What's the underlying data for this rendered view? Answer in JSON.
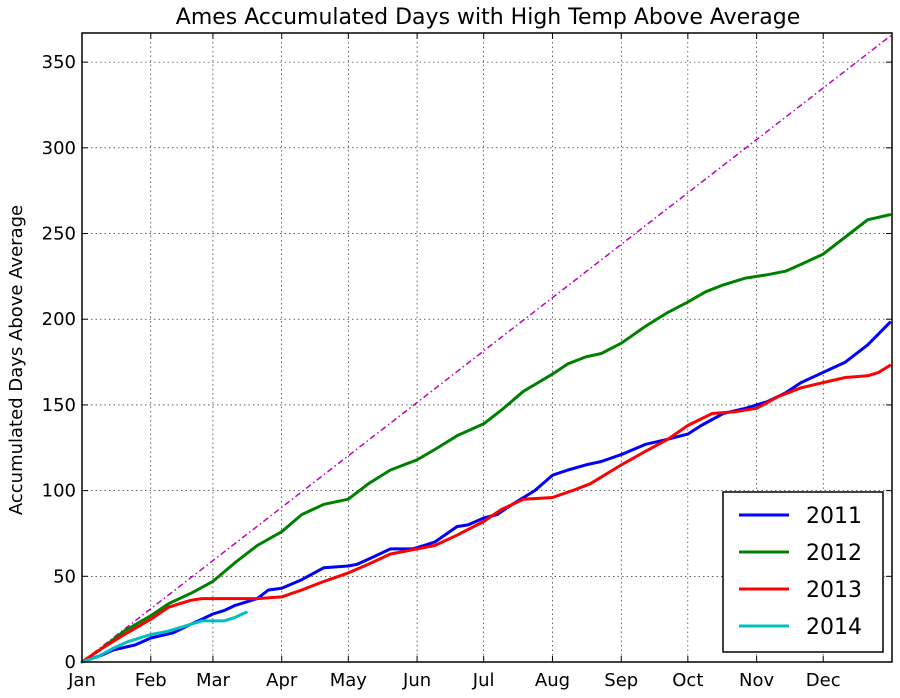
{
  "chart_data": {
    "type": "line",
    "title": "Ames Accumulated Days with High Temp Above Average",
    "xlabel": "",
    "ylabel": "Accumulated Days Above Average",
    "xlim": [
      1,
      366
    ],
    "ylim": [
      0,
      367
    ],
    "yticks": [
      0,
      50,
      100,
      150,
      200,
      250,
      300,
      350
    ],
    "xticks": [
      {
        "label": "Jan",
        "day": 1
      },
      {
        "label": "Feb",
        "day": 32
      },
      {
        "label": "Mar",
        "day": 60
      },
      {
        "label": "Apr",
        "day": 91
      },
      {
        "label": "May",
        "day": 121
      },
      {
        "label": "Jun",
        "day": 152
      },
      {
        "label": "Jul",
        "day": 182
      },
      {
        "label": "Aug",
        "day": 213
      },
      {
        "label": "Sep",
        "day": 244
      },
      {
        "label": "Oct",
        "day": 274
      },
      {
        "label": "Nov",
        "day": 305
      },
      {
        "label": "Dec",
        "day": 335
      }
    ],
    "grid": true,
    "legend_position": "bottom-right",
    "reference_line": {
      "color": "#bf00bf",
      "x": [
        1,
        366
      ],
      "y": [
        0,
        366
      ]
    },
    "series": [
      {
        "name": "2011",
        "color": "#0000ff",
        "x": [
          1,
          10,
          15,
          25,
          32,
          42,
          50,
          55,
          60,
          65,
          70,
          80,
          85,
          91,
          100,
          110,
          121,
          125,
          130,
          140,
          150,
          155,
          160,
          170,
          175,
          182,
          188,
          195,
          205,
          213,
          220,
          228,
          235,
          244,
          255,
          265,
          274,
          280,
          290,
          300,
          310,
          318,
          325,
          335,
          345,
          355,
          365
        ],
        "y": [
          0,
          4,
          7,
          10,
          14,
          17,
          22,
          25,
          28,
          30,
          33,
          37,
          42,
          43,
          48,
          55,
          56,
          57,
          60,
          66,
          66,
          68,
          70,
          79,
          80,
          84,
          86,
          92,
          100,
          109,
          112,
          115,
          117,
          121,
          127,
          130,
          133,
          138,
          145,
          148,
          152,
          157,
          163,
          169,
          175,
          185,
          198
        ]
      },
      {
        "name": "2012",
        "color": "#008000",
        "x": [
          1,
          10,
          20,
          32,
          40,
          50,
          60,
          70,
          80,
          91,
          100,
          110,
          121,
          130,
          140,
          152,
          160,
          170,
          182,
          190,
          200,
          213,
          220,
          228,
          235,
          244,
          255,
          265,
          274,
          282,
          290,
          300,
          310,
          318,
          325,
          335,
          345,
          355,
          365
        ],
        "y": [
          0,
          8,
          18,
          27,
          34,
          40,
          47,
          58,
          68,
          76,
          86,
          92,
          95,
          104,
          112,
          118,
          124,
          132,
          139,
          147,
          158,
          168,
          174,
          178,
          180,
          186,
          196,
          204,
          210,
          216,
          220,
          224,
          226,
          228,
          232,
          238,
          248,
          258,
          261
        ]
      },
      {
        "name": "2013",
        "color": "#ff0000",
        "x": [
          1,
          10,
          20,
          32,
          40,
          50,
          55,
          60,
          70,
          80,
          91,
          100,
          110,
          121,
          130,
          140,
          152,
          160,
          170,
          182,
          190,
          200,
          213,
          222,
          230,
          244,
          255,
          265,
          274,
          285,
          295,
          305,
          315,
          325,
          335,
          345,
          355,
          360,
          365
        ],
        "y": [
          0,
          8,
          16,
          25,
          32,
          36,
          37,
          37,
          37,
          37,
          38,
          42,
          47,
          52,
          57,
          63,
          66,
          68,
          74,
          82,
          89,
          95,
          96,
          100,
          104,
          115,
          123,
          130,
          138,
          145,
          146,
          148,
          155,
          160,
          163,
          166,
          167,
          169,
          173
        ]
      },
      {
        "name": "2014",
        "color": "#00bfbf",
        "x": [
          1,
          8,
          15,
          22,
          32,
          40,
          50,
          55,
          60,
          65,
          70,
          75
        ],
        "y": [
          0,
          3,
          8,
          12,
          16,
          18,
          22,
          24,
          24,
          24,
          26,
          29
        ]
      }
    ]
  }
}
